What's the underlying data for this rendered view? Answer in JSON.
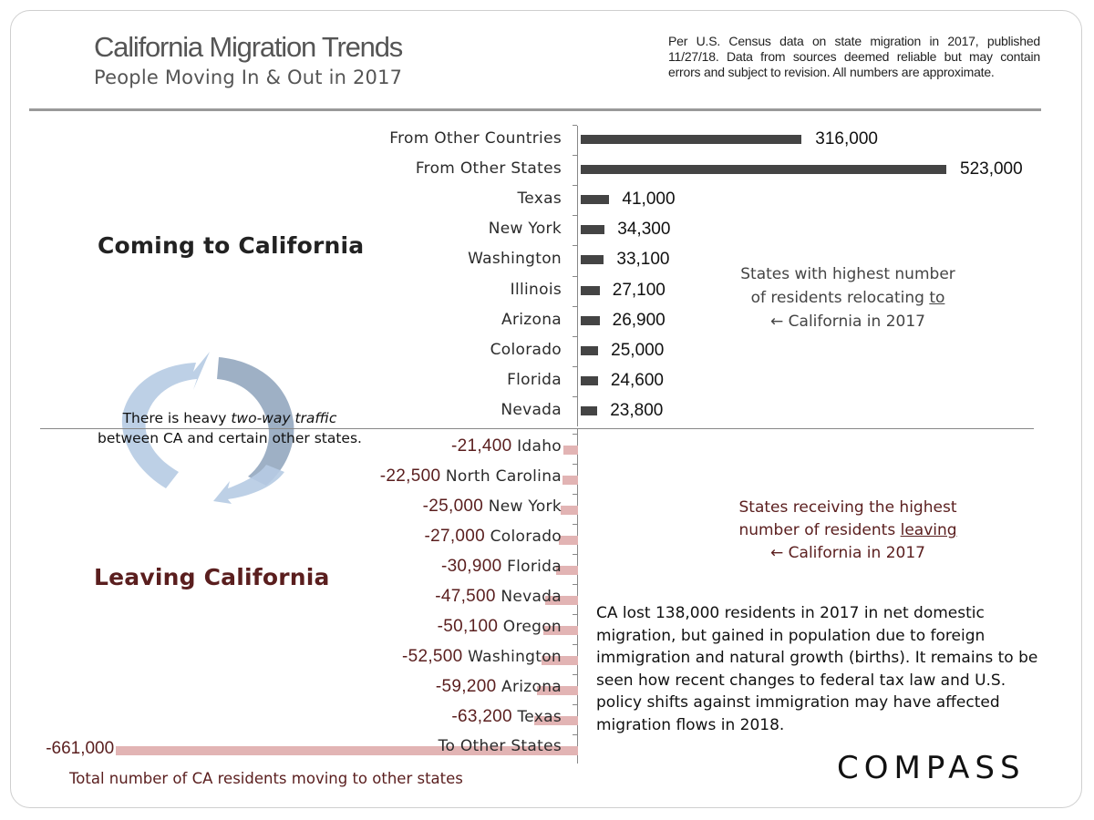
{
  "header": {
    "title": "California Migration Trends",
    "subtitle": "People Moving In & Out in 2017",
    "source_note": "Per U.S. Census data on state migration in 2017, published 11/27/18. Data from sources deemed reliable but may contain errors and subject to revision. All numbers are approximate."
  },
  "sections": {
    "incoming_title": "Coming to California",
    "outgoing_title": "Leaving California",
    "incoming_note": {
      "line1": "States with highest number",
      "line2_pre": "of  residents relocating ",
      "line2_u": "to",
      "line3": "← California in 2017"
    },
    "outgoing_note": {
      "line1": "States receiving the highest",
      "line2_pre": "number of residents ",
      "line2_u": "leaving",
      "line3": "← California in 2017"
    },
    "traffic_note": {
      "pre": "There is heavy ",
      "italic": "two-way traffic",
      "line2": "between CA and certain other states."
    },
    "summary": "CA lost  138,000 residents in 2017 in net domestic migration, but gained in population due to foreign immigration and natural growth (births).  It remains to be seen how recent changes to federal tax law and U.S. policy shifts against immigration may have affected migration flows in 2018.",
    "outgoing_caption": "Total number of CA residents moving to other states",
    "logo": "COMPASS"
  },
  "colors": {
    "incoming_bar": "#444444",
    "outgoing_bar": "#e2b4b4",
    "outgoing_text": "#5a1e1e",
    "arrows": "#a9c1dd"
  },
  "chart_data": {
    "type": "bar",
    "orientation": "horizontal",
    "title": "California Migration Trends",
    "subtitle": "People Moving In & Out in 2017",
    "xlabel": "",
    "ylabel": "",
    "grid": false,
    "series": [
      {
        "name": "Coming to California",
        "categories": [
          "From Other Countries",
          "From Other States",
          "Texas",
          "New York",
          "Washington",
          "Illinois",
          "Arizona",
          "Colorado",
          "Florida",
          "Nevada"
        ],
        "values": [
          316000,
          523000,
          41000,
          34300,
          33100,
          27100,
          26900,
          25000,
          24600,
          23800
        ],
        "labels": [
          "316,000",
          "523,000",
          "41,000",
          "34,300",
          "33,100",
          "27,100",
          "26,900",
          "25,000",
          "24,600",
          "23,800"
        ]
      },
      {
        "name": "Leaving California",
        "categories": [
          "Idaho",
          "North Carolina",
          "New York",
          "Colorado",
          "Florida",
          "Nevada",
          "Oregon",
          "Washington",
          "Arizona",
          "Texas",
          "To Other States"
        ],
        "values": [
          -21400,
          -22500,
          -25000,
          -27000,
          -30900,
          -47500,
          -50100,
          -52500,
          -59200,
          -63200,
          -661000
        ],
        "labels": [
          "-21,400",
          "-22,500",
          "-25,000",
          "-27,000",
          "-30,900",
          "-47,500",
          "-50,100",
          "-52,500",
          "-59,200",
          "-63,200",
          "-661,000"
        ]
      }
    ],
    "annotations": [
      "States with highest number of residents relocating to ← California in 2017",
      "States receiving the highest number of residents leaving ← California in 2017",
      "There is heavy two-way traffic between CA and certain other states.",
      "Total number of CA residents moving to other states"
    ],
    "xlim": [
      -661000,
      523000
    ]
  }
}
